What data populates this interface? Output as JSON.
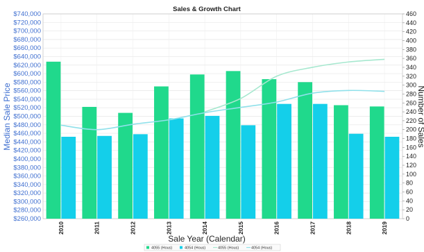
{
  "chart_data": {
    "type": "bar",
    "title": "Sales & Growth Chart",
    "xlabel": "Sale Year (Calendar)",
    "ylabel_left": "Median Sale Price",
    "ylabel_right": "Number of Sales",
    "categories": [
      "2010",
      "2011",
      "2012",
      "2013",
      "2014",
      "2015",
      "2016",
      "2017",
      "2018",
      "2019"
    ],
    "ylim_left": [
      260000,
      740000
    ],
    "ylim_right": [
      0,
      460
    ],
    "left_ticks": [
      "$260,000",
      "$280,000",
      "$300,000",
      "$320,000",
      "$340,000",
      "$360,000",
      "$380,000",
      "$400,000",
      "$420,000",
      "$440,000",
      "$460,000",
      "$480,000",
      "$500,000",
      "$520,000",
      "$540,000",
      "$560,000",
      "$580,000",
      "$600,000",
      "$620,000",
      "$640,000",
      "$660,000",
      "$680,000",
      "$700,000",
      "$720,000",
      "$740,000"
    ],
    "right_ticks": [
      "0",
      "20",
      "40",
      "60",
      "80",
      "100",
      "120",
      "140",
      "160",
      "180",
      "200",
      "220",
      "240",
      "260",
      "280",
      "300",
      "320",
      "340",
      "360",
      "380",
      "400",
      "420",
      "440",
      "460"
    ],
    "series": [
      {
        "name": "4055 (Hous)",
        "kind": "bar",
        "axis": "left",
        "color": "#20d98c",
        "values": [
          628000,
          522000,
          508000,
          570000,
          598000,
          606000,
          587000,
          580000,
          526000,
          523000
        ]
      },
      {
        "name": "4054 (Hous)",
        "kind": "bar",
        "axis": "left",
        "color": "#14cfea",
        "values": [
          452000,
          454000,
          458000,
          495000,
          501000,
          479000,
          529000,
          529000,
          459000,
          452000
        ]
      },
      {
        "name": "4055 (Hous)",
        "kind": "line",
        "axis": "right",
        "color": "#a6e8cf",
        "values": [
          null,
          null,
          null,
          null,
          240,
          270,
          320,
          340,
          352,
          358
        ]
      },
      {
        "name": "4054 (Hous)",
        "kind": "line",
        "axis": "right",
        "color": "#8fe0ea",
        "values": [
          210,
          200,
          212,
          222,
          238,
          250,
          262,
          282,
          288,
          286
        ]
      }
    ],
    "legend": {
      "position": "bottom-center"
    },
    "grid": true
  }
}
